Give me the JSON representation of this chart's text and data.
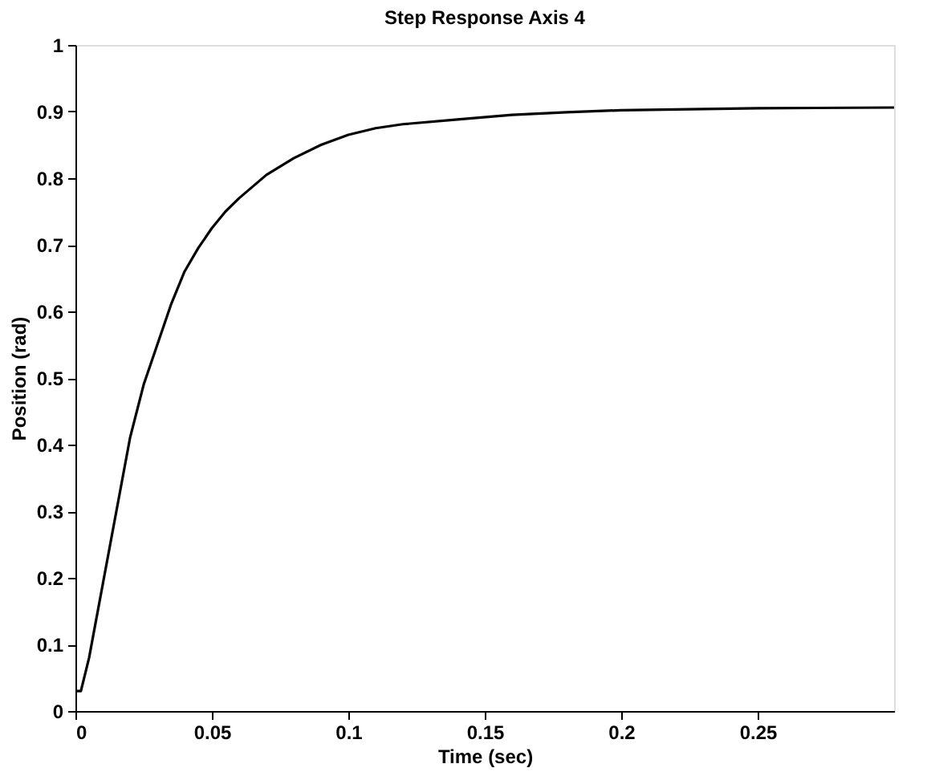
{
  "chart_data": {
    "type": "line",
    "title": "Step Response Axis 4",
    "xlabel": "Time (sec)",
    "ylabel": "Position (rad)",
    "xlim": [
      0,
      0.3
    ],
    "xticks": [
      0,
      0.05,
      0.1,
      0.15,
      0.2,
      0.25
    ],
    "ylim": [
      0,
      1
    ],
    "yticks": [
      0,
      0.1,
      0.2,
      0.3,
      0.4,
      0.5,
      0.6,
      0.7,
      0.8,
      0.9,
      1
    ],
    "grid": false,
    "series": [
      {
        "color": "#000000",
        "line_style": "solid",
        "x": [
          0,
          0.002,
          0.005,
          0.01,
          0.015,
          0.02,
          0.025,
          0.03,
          0.035,
          0.04,
          0.045,
          0.05,
          0.055,
          0.06,
          0.07,
          0.08,
          0.09,
          0.1,
          0.11,
          0.12,
          0.14,
          0.16,
          0.18,
          0.2,
          0.25,
          0.3
        ],
        "values": [
          0.03,
          0.03,
          0.08,
          0.19,
          0.3,
          0.41,
          0.49,
          0.55,
          0.61,
          0.66,
          0.695,
          0.725,
          0.75,
          0.77,
          0.805,
          0.83,
          0.85,
          0.865,
          0.875,
          0.881,
          0.888,
          0.895,
          0.899,
          0.902,
          0.905,
          0.906
        ]
      }
    ]
  }
}
